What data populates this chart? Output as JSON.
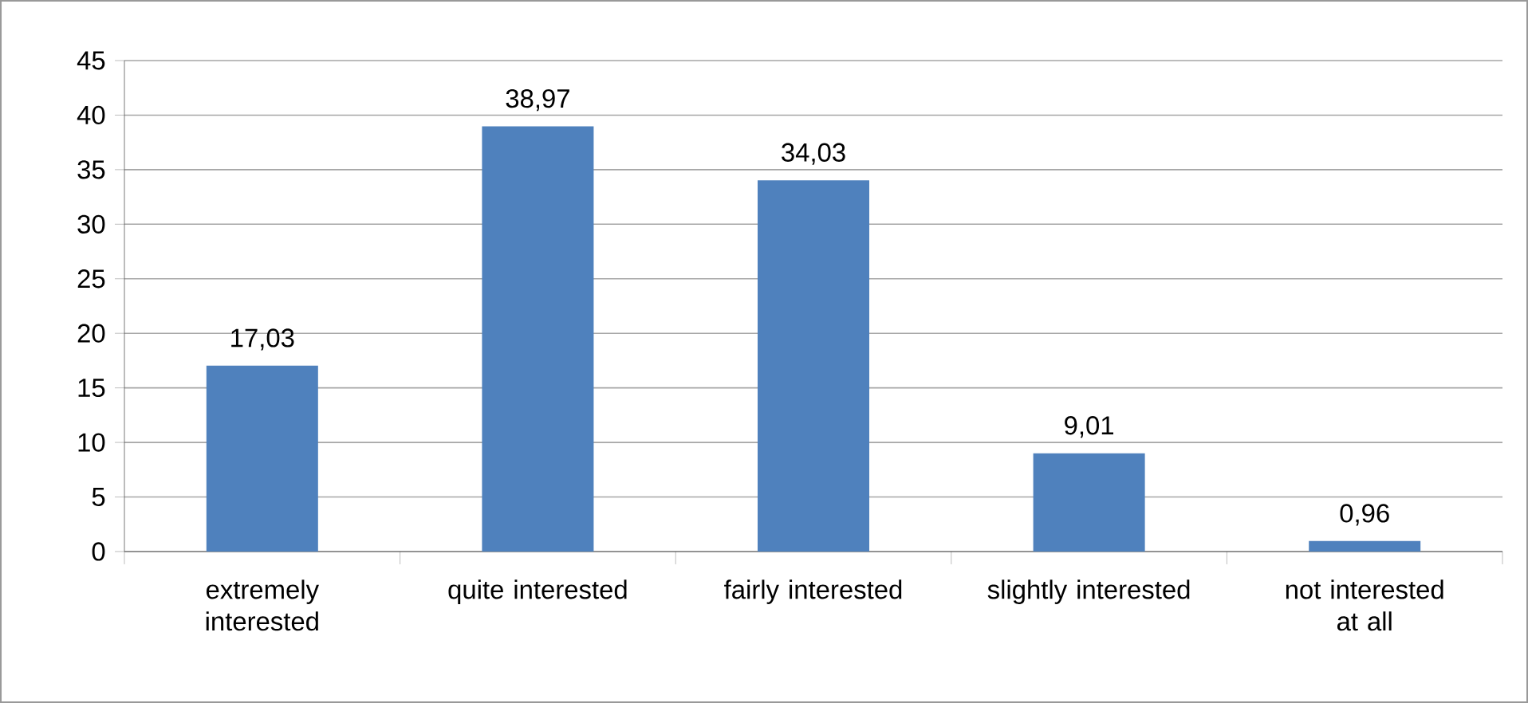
{
  "chart_data": {
    "type": "bar",
    "categories": [
      "extremely interested",
      "quite interested",
      "fairly interested",
      "slightly interested",
      "not interested at all"
    ],
    "values": [
      17.03,
      38.97,
      34.03,
      9.01,
      0.96
    ],
    "value_labels": [
      "17,03",
      "38,97",
      "34,03",
      "9,01",
      "0,96"
    ],
    "color": "#4f81bd",
    "ylim": [
      0,
      45
    ],
    "yticks": [
      0,
      5,
      10,
      15,
      20,
      25,
      30,
      35,
      40,
      45
    ],
    "grid": "y"
  }
}
